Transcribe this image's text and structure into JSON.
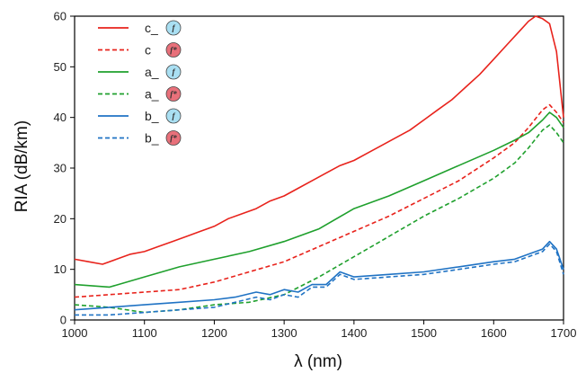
{
  "chart_data": {
    "type": "line",
    "xlabel": "λ (nm)",
    "ylabel": "RIA (dB/km)",
    "xlim": [
      1000,
      1700
    ],
    "ylim": [
      0,
      60
    ],
    "xticks": [
      1000,
      1100,
      1200,
      1300,
      1400,
      1500,
      1600,
      1700
    ],
    "yticks": [
      0,
      10,
      20,
      30,
      40,
      50,
      60
    ],
    "grid": false,
    "legend_position": "top-left",
    "series": [
      {
        "name": "c_",
        "badge": "f",
        "badge_color": "#a9dff2",
        "color": "#e8231c",
        "dash": "solid",
        "x": [
          1000,
          1020,
          1040,
          1060,
          1080,
          1100,
          1120,
          1140,
          1160,
          1180,
          1200,
          1220,
          1240,
          1260,
          1280,
          1300,
          1320,
          1340,
          1360,
          1380,
          1400,
          1420,
          1440,
          1460,
          1480,
          1500,
          1520,
          1540,
          1560,
          1580,
          1600,
          1620,
          1640,
          1650,
          1660,
          1670,
          1680,
          1690,
          1700
        ],
        "y": [
          12,
          11.5,
          11,
          12,
          13,
          13.5,
          14.5,
          15.5,
          16.5,
          17.5,
          18.5,
          20,
          21,
          22,
          23.5,
          24.5,
          26,
          27.5,
          29,
          30.5,
          31.5,
          33,
          34.5,
          36,
          37.5,
          39.5,
          41.5,
          43.5,
          46,
          48.5,
          51.5,
          54.5,
          57.5,
          59,
          60,
          59.5,
          58.5,
          53,
          40
        ]
      },
      {
        "name": "c",
        "badge": "f*",
        "badge_color": "#e8707a",
        "color": "#e8231c",
        "dash": "dashed",
        "x": [
          1000,
          1050,
          1100,
          1150,
          1200,
          1250,
          1300,
          1350,
          1400,
          1450,
          1500,
          1550,
          1600,
          1630,
          1650,
          1670,
          1680,
          1690,
          1700
        ],
        "y": [
          4.5,
          5,
          5.5,
          6,
          7.5,
          9.5,
          11.5,
          14.5,
          17.5,
          20.5,
          24,
          27.5,
          32,
          35,
          38,
          41.5,
          42.5,
          41,
          39
        ]
      },
      {
        "name": "a_",
        "badge": "f",
        "badge_color": "#a9dff2",
        "color": "#1fa02d",
        "dash": "solid",
        "x": [
          1000,
          1050,
          1100,
          1150,
          1200,
          1250,
          1300,
          1350,
          1400,
          1450,
          1500,
          1550,
          1600,
          1630,
          1650,
          1670,
          1680,
          1690,
          1700
        ],
        "y": [
          7,
          6.5,
          8.5,
          10.5,
          12,
          13.5,
          15.5,
          18,
          22,
          24.5,
          27.5,
          30.5,
          33.5,
          35.5,
          37,
          39.5,
          41,
          40,
          38
        ]
      },
      {
        "name": "a_",
        "badge": "f*",
        "badge_color": "#e8707a",
        "color": "#1fa02d",
        "dash": "dashed",
        "x": [
          1000,
          1050,
          1100,
          1150,
          1200,
          1250,
          1300,
          1350,
          1400,
          1450,
          1500,
          1550,
          1600,
          1630,
          1650,
          1670,
          1680,
          1690,
          1700
        ],
        "y": [
          3,
          2.5,
          1.5,
          2,
          3,
          3.5,
          5,
          8.5,
          12.5,
          16.5,
          20.5,
          24,
          28,
          31,
          34,
          37.5,
          38.5,
          37,
          35
        ]
      },
      {
        "name": "b_",
        "badge": "f",
        "badge_color": "#a9dff2",
        "color": "#2073c4",
        "dash": "solid",
        "x": [
          1000,
          1050,
          1100,
          1150,
          1200,
          1230,
          1260,
          1280,
          1300,
          1320,
          1340,
          1360,
          1380,
          1400,
          1450,
          1500,
          1550,
          1600,
          1630,
          1650,
          1670,
          1680,
          1690,
          1700
        ],
        "y": [
          2,
          2.5,
          3,
          3.5,
          4,
          4.5,
          5.5,
          5,
          6,
          5.5,
          7,
          7,
          9.5,
          8.5,
          9,
          9.5,
          10.5,
          11.5,
          12,
          13,
          14,
          15.5,
          14,
          10
        ]
      },
      {
        "name": "b_",
        "badge": "f*",
        "badge_color": "#e8707a",
        "color": "#2073c4",
        "dash": "dashed",
        "x": [
          1000,
          1050,
          1100,
          1150,
          1200,
          1230,
          1260,
          1280,
          1300,
          1320,
          1340,
          1360,
          1380,
          1400,
          1450,
          1500,
          1550,
          1600,
          1630,
          1650,
          1670,
          1680,
          1690,
          1700
        ],
        "y": [
          1,
          1,
          1.5,
          2,
          2.5,
          3.5,
          4.5,
          4,
          5,
          4.5,
          6.5,
          6.5,
          9,
          8,
          8.5,
          9,
          10,
          11,
          11.5,
          12.5,
          13.5,
          15,
          13.5,
          9
        ]
      }
    ]
  }
}
